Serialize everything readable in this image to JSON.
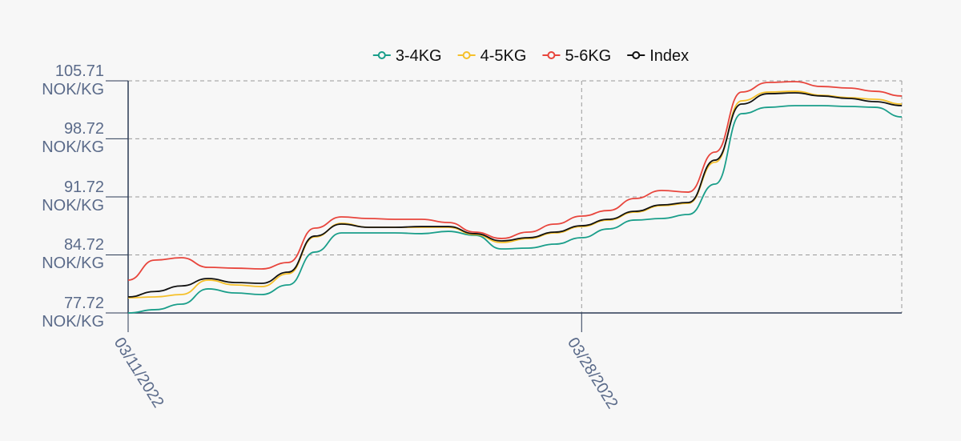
{
  "chart_data": {
    "type": "line",
    "x": [
      "03/11/2022",
      "03/12/2022",
      "03/13/2022",
      "03/14/2022",
      "03/15/2022",
      "03/16/2022",
      "03/17/2022",
      "03/18/2022",
      "03/19/2022",
      "03/20/2022",
      "03/21/2022",
      "03/22/2022",
      "03/23/2022",
      "03/24/2022",
      "03/25/2022",
      "03/26/2022",
      "03/27/2022",
      "03/28/2022",
      "03/29/2022",
      "03/30/2022",
      "03/31/2022",
      "04/01/2022",
      "04/02/2022",
      "04/03/2022",
      "04/04/2022",
      "04/05/2022",
      "04/06/2022",
      "04/07/2022",
      "04/08/2022",
      "04/09/2022"
    ],
    "series": [
      {
        "name": "3-4KG",
        "color": "#1a9e8a",
        "values": [
          77.72,
          78.11,
          78.78,
          80.62,
          80.13,
          79.94,
          81.1,
          85.06,
          87.37,
          87.37,
          87.37,
          87.28,
          87.56,
          87.08,
          85.44,
          85.54,
          86.02,
          86.79,
          87.85,
          88.92,
          89.11,
          89.59,
          93.26,
          101.75,
          102.52,
          102.72,
          102.72,
          102.62,
          102.52,
          101.36
        ]
      },
      {
        "name": "4-5KG",
        "color": "#f5c02a",
        "values": [
          79.55,
          79.65,
          79.94,
          81.68,
          81.1,
          80.9,
          82.45,
          86.89,
          88.53,
          88.05,
          88.05,
          88.05,
          88.05,
          87.18,
          86.21,
          86.69,
          87.37,
          88.14,
          88.92,
          89.88,
          90.65,
          90.95,
          95.9,
          103.3,
          104.36,
          104.45,
          103.97,
          103.68,
          103.49,
          102.91
        ]
      },
      {
        "name": "5-6KG",
        "color": "#e8453c",
        "values": [
          81.68,
          84.09,
          84.38,
          83.22,
          83.12,
          83.03,
          83.8,
          87.95,
          89.3,
          89.11,
          89.01,
          89.01,
          88.63,
          87.47,
          86.7,
          87.47,
          88.43,
          89.4,
          90.07,
          91.52,
          92.49,
          92.29,
          97.12,
          104.36,
          105.52,
          105.61,
          105.03,
          104.84,
          104.45,
          103.88
        ]
      },
      {
        "name": "Index",
        "color": "#111111",
        "values": [
          79.65,
          80.3,
          80.98,
          81.87,
          81.39,
          81.29,
          82.64,
          86.99,
          88.43,
          88.05,
          88.05,
          88.14,
          88.14,
          87.28,
          86.41,
          86.79,
          87.47,
          88.24,
          89.01,
          89.98,
          90.75,
          91.04,
          96.15,
          102.91,
          104.16,
          104.26,
          103.88,
          103.59,
          103.2,
          102.72
        ]
      }
    ],
    "xlim": [
      "03/11/2022",
      "04/09/2022"
    ],
    "xticks": [
      "03/11/2022",
      "03/28/2022"
    ],
    "ylim": [
      77.72,
      105.71
    ],
    "yticks": [
      {
        "value": 77.72,
        "label": "77.72 NOK/KG"
      },
      {
        "value": 84.72,
        "label": "84.72 NOK/KG"
      },
      {
        "value": 91.72,
        "label": "91.72 NOK/KG"
      },
      {
        "value": 98.72,
        "label": "98.72 NOK/KG"
      },
      {
        "value": 105.71,
        "label": "105.71 NOK/KG"
      }
    ],
    "grid": true,
    "legend": "top"
  }
}
